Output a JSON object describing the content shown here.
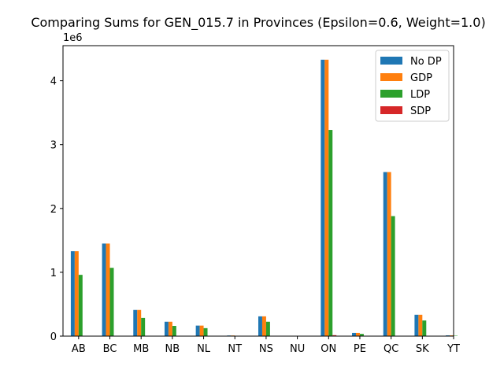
{
  "chart_data": {
    "type": "bar",
    "title": "Comparing Sums for GEN_015.7 in Provinces (Epsilon=0.6, Weight=1.0)",
    "xlabel": "",
    "ylabel": "",
    "y_offset_label": "1e6",
    "ylim": [
      0,
      4550000
    ],
    "y_ticks": [
      0,
      1000000,
      2000000,
      3000000,
      4000000
    ],
    "y_tick_labels": [
      "0",
      "1",
      "2",
      "3",
      "4"
    ],
    "grid": false,
    "legend_position": "top-right",
    "categories": [
      "AB",
      "BC",
      "MB",
      "NB",
      "NL",
      "NT",
      "NS",
      "NU",
      "ON",
      "PE",
      "QC",
      "SK",
      "YT"
    ],
    "series": [
      {
        "name": "No DP",
        "color": "#1f77b4",
        "values": [
          1330000,
          1450000,
          410000,
          225000,
          165000,
          10000,
          310000,
          2000,
          4330000,
          50000,
          2570000,
          335000,
          12000
        ]
      },
      {
        "name": "GDP",
        "color": "#ff7f0e",
        "values": [
          1330000,
          1450000,
          410000,
          225000,
          165000,
          10000,
          310000,
          2000,
          4330000,
          50000,
          2570000,
          335000,
          12000
        ]
      },
      {
        "name": "LDP",
        "color": "#2ca02c",
        "values": [
          960000,
          1070000,
          285000,
          160000,
          125000,
          5000,
          225000,
          1000,
          3230000,
          35000,
          1880000,
          245000,
          6000
        ]
      },
      {
        "name": "SDP",
        "color": "#d62728",
        "values": [
          0,
          0,
          0,
          0,
          0,
          0,
          0,
          0,
          15000,
          0,
          0,
          0,
          0
        ]
      }
    ]
  }
}
